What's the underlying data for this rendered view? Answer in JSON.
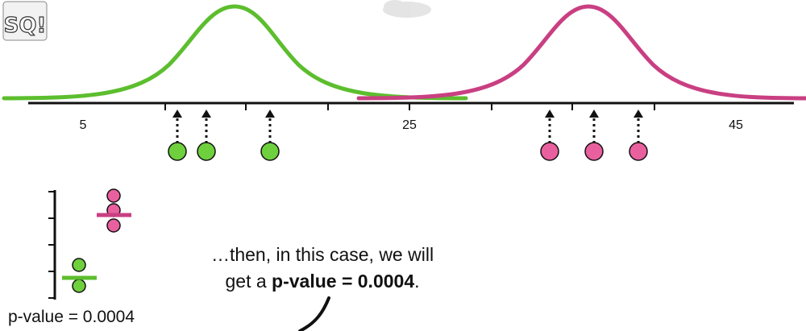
{
  "logo_text": "StatQuest",
  "axis": {
    "tick_labels": [
      "5",
      "25",
      "45"
    ]
  },
  "caption": {
    "line1": "…then, in this case, we will",
    "line2_prefix": "get a ",
    "line2_bold": "p-value = 0.0004",
    "line2_suffix": "."
  },
  "pvalue_label": "p-value = 0.0004",
  "colors": {
    "green": "#5cbe2e",
    "pink": "#c93f82",
    "green_dot": "#6fd03e",
    "pink_dot": "#e9609f"
  }
}
